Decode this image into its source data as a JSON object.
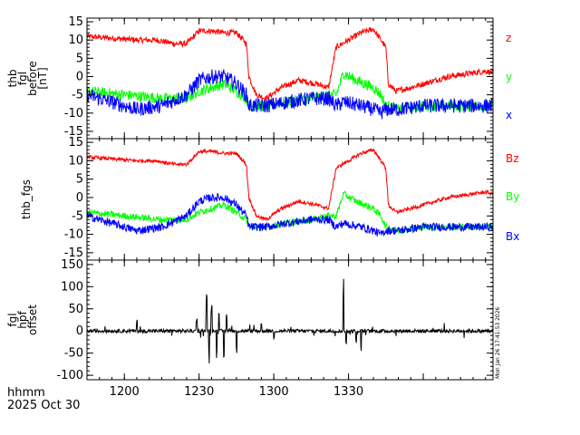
{
  "footer": {
    "line1": "hhmm",
    "line2": "2025 Oct 30"
  },
  "timestamp": "Mon Jan 26 17:41:53 2026",
  "chart_data": [
    {
      "type": "line",
      "ylabel": [
        "thb",
        "fgl",
        "before",
        "[nT]"
      ],
      "ylim": [
        -17,
        16
      ],
      "yticks": [
        15,
        10,
        5,
        0,
        -5,
        -10,
        -15
      ],
      "xlim": [
        0,
        163
      ],
      "xticks_min": [
        15,
        45,
        75,
        105,
        135
      ],
      "xticklabels": [
        "1200",
        "1230",
        "1300",
        "1330"
      ],
      "series": [
        {
          "name": "z",
          "color": "#ff0000",
          "noise": 0.8,
          "x": [
            0,
            10,
            20,
            28,
            35,
            40,
            45,
            50,
            55,
            60,
            64,
            65,
            68,
            72,
            78,
            85,
            92,
            97,
            100,
            105,
            110,
            115,
            118,
            120,
            121,
            124,
            130,
            135,
            140,
            145,
            150,
            155,
            160,
            163
          ],
          "y": [
            11,
            10.5,
            10,
            10,
            9,
            9,
            12.5,
            12.5,
            12,
            12,
            9,
            0,
            -5,
            -6,
            -3,
            -1,
            -2,
            -3,
            8,
            10,
            12,
            13,
            10,
            8,
            -2,
            -4,
            -3,
            -2,
            -1,
            0,
            0.5,
            1,
            1.5,
            1
          ]
        },
        {
          "name": "y",
          "color": "#00ff00",
          "noise": 1.5,
          "x": [
            0,
            15,
            30,
            40,
            45,
            50,
            55,
            60,
            64,
            65,
            72,
            80,
            90,
            97,
            100,
            103,
            108,
            115,
            118,
            120,
            125,
            135,
            145,
            155,
            163
          ],
          "y": [
            -4,
            -5,
            -6,
            -6,
            -4,
            -3,
            -2,
            -4,
            -6,
            -8,
            -8,
            -7,
            -6,
            -5,
            -5,
            1,
            -1,
            -3,
            -5,
            -8,
            -9,
            -8,
            -8,
            -8,
            -8
          ]
        },
        {
          "name": "x",
          "color": "#0000ff",
          "noise": 2.0,
          "x": [
            0,
            10,
            20,
            30,
            40,
            45,
            50,
            55,
            60,
            64,
            65,
            72,
            80,
            90,
            97,
            100,
            103,
            110,
            115,
            118,
            120,
            125,
            135,
            145,
            155,
            163
          ],
          "y": [
            -5,
            -7,
            -9,
            -8,
            -5,
            -1,
            0,
            0,
            -2,
            -5,
            -8,
            -8,
            -7,
            -6,
            -6,
            -8,
            -7,
            -8,
            -9,
            -10,
            -9,
            -9,
            -8,
            -8,
            -8,
            -8
          ]
        }
      ]
    },
    {
      "type": "line",
      "ylabel": [
        "thb_fgs"
      ],
      "ylim": [
        -17,
        16
      ],
      "yticks": [
        15,
        10,
        5,
        0,
        -5,
        -10,
        -15
      ],
      "xlim": [
        0,
        163
      ],
      "series": [
        {
          "name": "Bz",
          "color": "#ff0000",
          "noise": 0.5,
          "x": [
            0,
            10,
            20,
            28,
            35,
            40,
            45,
            50,
            55,
            60,
            64,
            65,
            68,
            72,
            78,
            85,
            92,
            97,
            100,
            105,
            110,
            115,
            118,
            120,
            121,
            124,
            130,
            135,
            140,
            145,
            150,
            155,
            160,
            163
          ],
          "y": [
            11,
            10.5,
            10,
            10,
            9,
            9,
            12.5,
            12.5,
            12,
            12,
            9,
            0,
            -5,
            -6,
            -3,
            -1,
            -2,
            -3,
            8,
            10,
            12,
            13,
            10,
            8,
            -2,
            -4,
            -3,
            -2,
            -1,
            0,
            0.5,
            1,
            1.5,
            1
          ]
        },
        {
          "name": "By",
          "color": "#00ff00",
          "noise": 0.9,
          "x": [
            0,
            15,
            30,
            40,
            45,
            50,
            55,
            60,
            64,
            65,
            72,
            80,
            90,
            97,
            100,
            103,
            108,
            115,
            118,
            120,
            125,
            135,
            145,
            155,
            163
          ],
          "y": [
            -4,
            -5,
            -6,
            -6,
            -4,
            -3,
            -2,
            -4,
            -6,
            -8,
            -8,
            -7,
            -6,
            -5,
            -5,
            1,
            -1,
            -3,
            -5,
            -8,
            -9,
            -8,
            -8,
            -8,
            -8
          ]
        },
        {
          "name": "Bx",
          "color": "#0000ff",
          "noise": 1.1,
          "x": [
            0,
            10,
            20,
            30,
            40,
            45,
            50,
            55,
            60,
            64,
            65,
            72,
            80,
            90,
            97,
            100,
            103,
            110,
            115,
            118,
            120,
            125,
            135,
            145,
            155,
            163
          ],
          "y": [
            -5,
            -7,
            -9,
            -8,
            -5,
            -1,
            0,
            0,
            -2,
            -5,
            -8,
            -8,
            -7,
            -6,
            -6,
            -8,
            -7,
            -8,
            -9,
            -10,
            -9,
            -9,
            -8,
            -8,
            -8,
            -8
          ]
        }
      ]
    },
    {
      "type": "line",
      "ylabel": [
        "fgl",
        "hpf",
        "offset"
      ],
      "ylim": [
        -110,
        160
      ],
      "yticks": [
        150,
        100,
        50,
        0,
        -50,
        -100
      ],
      "xlim": [
        0,
        163
      ],
      "series": [
        {
          "name": "",
          "color": "#000000",
          "noise": 4,
          "x": [
            0,
            163
          ],
          "y": [
            0,
            0
          ],
          "spikes": [
            [
              48,
              85
            ],
            [
              49,
              -75
            ],
            [
              50,
              60
            ],
            [
              52,
              -65
            ],
            [
              53,
              45
            ],
            [
              55,
              -85
            ],
            [
              56,
              40
            ],
            [
              44,
              35
            ],
            [
              60,
              -40
            ],
            [
              103,
              118
            ],
            [
              104,
              -30
            ],
            [
              110,
              -40
            ],
            [
              20,
              30
            ],
            [
              70,
              20
            ],
            [
              75,
              -25
            ],
            [
              108,
              -30
            ]
          ]
        }
      ]
    }
  ]
}
